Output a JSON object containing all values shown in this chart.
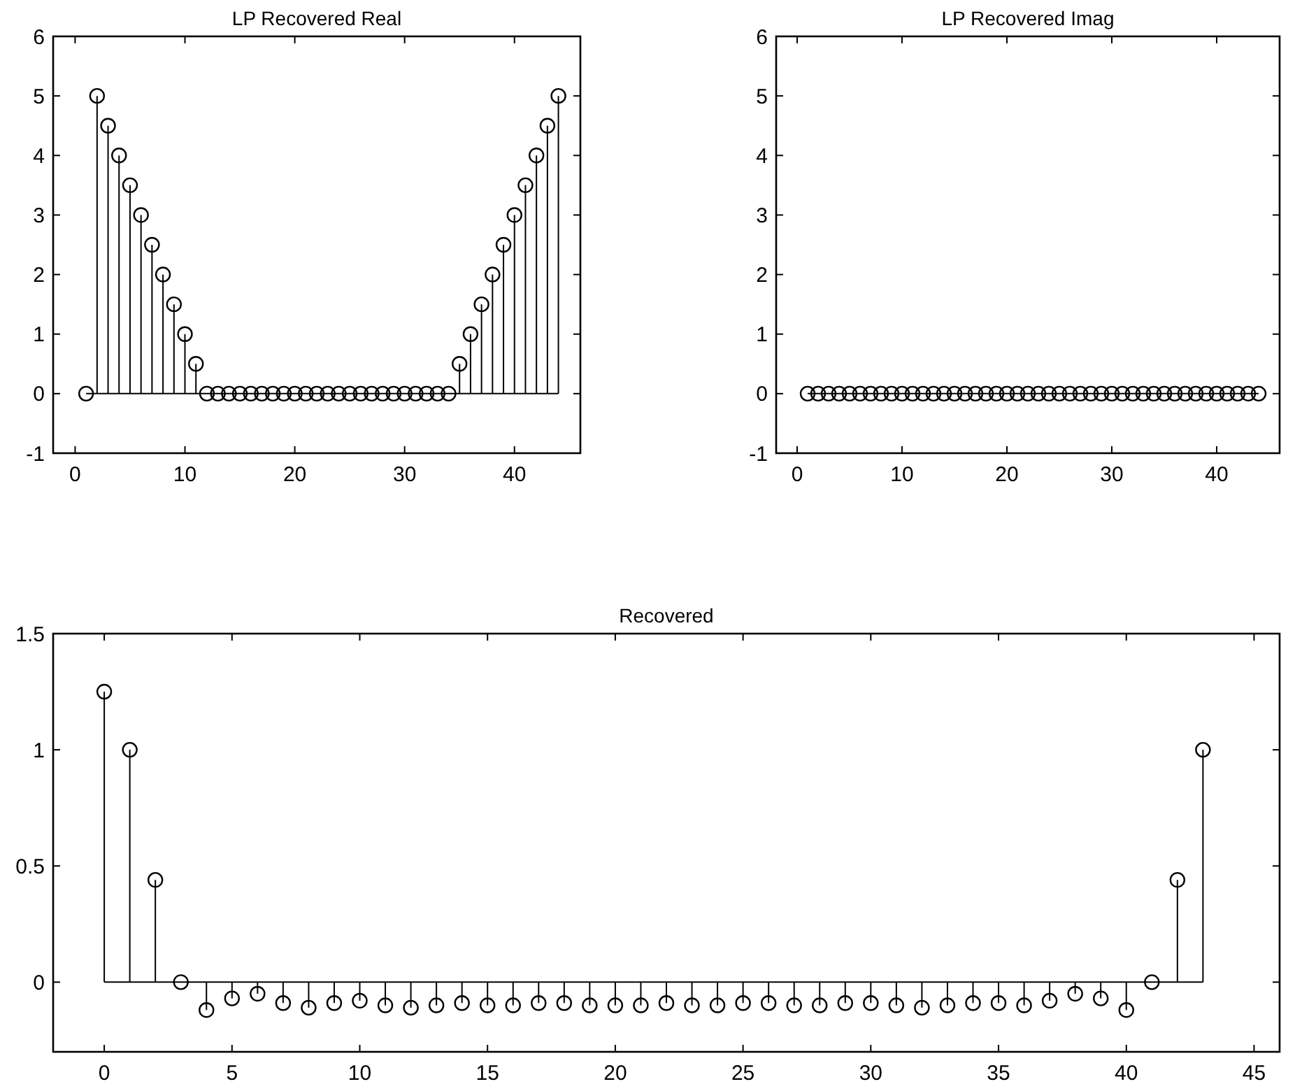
{
  "chart_data": [
    {
      "type": "lollipop",
      "title": "LP Recovered Real",
      "x": [
        1,
        2,
        3,
        4,
        5,
        6,
        7,
        8,
        9,
        10,
        11,
        12,
        13,
        14,
        15,
        16,
        17,
        18,
        19,
        20,
        21,
        22,
        23,
        24,
        25,
        26,
        27,
        28,
        29,
        30,
        31,
        32,
        33,
        34,
        35,
        36,
        37,
        38,
        39,
        40,
        41,
        42,
        43,
        44
      ],
      "values": [
        0,
        5,
        4.5,
        4,
        3.5,
        3,
        2.5,
        2,
        1.5,
        1,
        0.5,
        0,
        0,
        0,
        0,
        0,
        0,
        0,
        0,
        0,
        0,
        0,
        0,
        0,
        0,
        0,
        0,
        0,
        0,
        0,
        0,
        0,
        0,
        0,
        0.5,
        1,
        1.5,
        2,
        2.5,
        3,
        3.5,
        4,
        4.5,
        5
      ],
      "color": "#000000",
      "marker": "circle",
      "xlim": [
        -2,
        46
      ],
      "xticks": [
        0,
        10,
        20,
        30,
        40
      ],
      "ylim": [
        -1,
        6
      ],
      "yticks": [
        -1,
        0,
        1,
        2,
        3,
        4,
        5,
        6
      ]
    },
    {
      "type": "lollipop",
      "title": "LP Recovered Imag",
      "x": [
        1,
        2,
        3,
        4,
        5,
        6,
        7,
        8,
        9,
        10,
        11,
        12,
        13,
        14,
        15,
        16,
        17,
        18,
        19,
        20,
        21,
        22,
        23,
        24,
        25,
        26,
        27,
        28,
        29,
        30,
        31,
        32,
        33,
        34,
        35,
        36,
        37,
        38,
        39,
        40,
        41,
        42,
        43,
        44
      ],
      "values": [
        0,
        0,
        0,
        0,
        0,
        0,
        0,
        0,
        0,
        0,
        0,
        0,
        0,
        0,
        0,
        0,
        0,
        0,
        0,
        0,
        0,
        0,
        0,
        0,
        0,
        0,
        0,
        0,
        0,
        0,
        0,
        0,
        0,
        0,
        0,
        0,
        0,
        0,
        0,
        0,
        0,
        0,
        0,
        0
      ],
      "color": "#000000",
      "marker": "circle",
      "xlim": [
        -2,
        46
      ],
      "xticks": [
        0,
        10,
        20,
        30,
        40
      ],
      "ylim": [
        -1,
        6
      ],
      "yticks": [
        -1,
        0,
        1,
        2,
        3,
        4,
        5,
        6
      ]
    },
    {
      "type": "lollipop",
      "title": "Recovered",
      "x": [
        0,
        1,
        2,
        3,
        4,
        5,
        6,
        7,
        8,
        9,
        10,
        11,
        12,
        13,
        14,
        15,
        16,
        17,
        18,
        19,
        20,
        21,
        22,
        23,
        24,
        25,
        26,
        27,
        28,
        29,
        30,
        31,
        32,
        33,
        34,
        35,
        36,
        37,
        38,
        39,
        40,
        41,
        42,
        43
      ],
      "values": [
        1.25,
        1,
        0.44,
        0,
        -0.12,
        -0.07,
        -0.05,
        -0.09,
        -0.11,
        -0.09,
        -0.08,
        -0.1,
        -0.11,
        -0.1,
        -0.09,
        -0.1,
        -0.1,
        -0.09,
        -0.09,
        -0.1,
        -0.1,
        -0.1,
        -0.09,
        -0.1,
        -0.1,
        -0.09,
        -0.09,
        -0.1,
        -0.1,
        -0.09,
        -0.09,
        -0.1,
        -0.11,
        -0.1,
        -0.09,
        -0.09,
        -0.1,
        -0.08,
        -0.05,
        -0.07,
        -0.12,
        0,
        0.44,
        1
      ],
      "color": "#000000",
      "marker": "circle",
      "xlim": [
        -2,
        46
      ],
      "xticks": [
        0,
        5,
        10,
        15,
        20,
        25,
        30,
        35,
        40,
        45
      ],
      "ylim": [
        -0.3,
        1.5
      ],
      "yticks": [
        0,
        0.5,
        1,
        1.5
      ]
    }
  ]
}
